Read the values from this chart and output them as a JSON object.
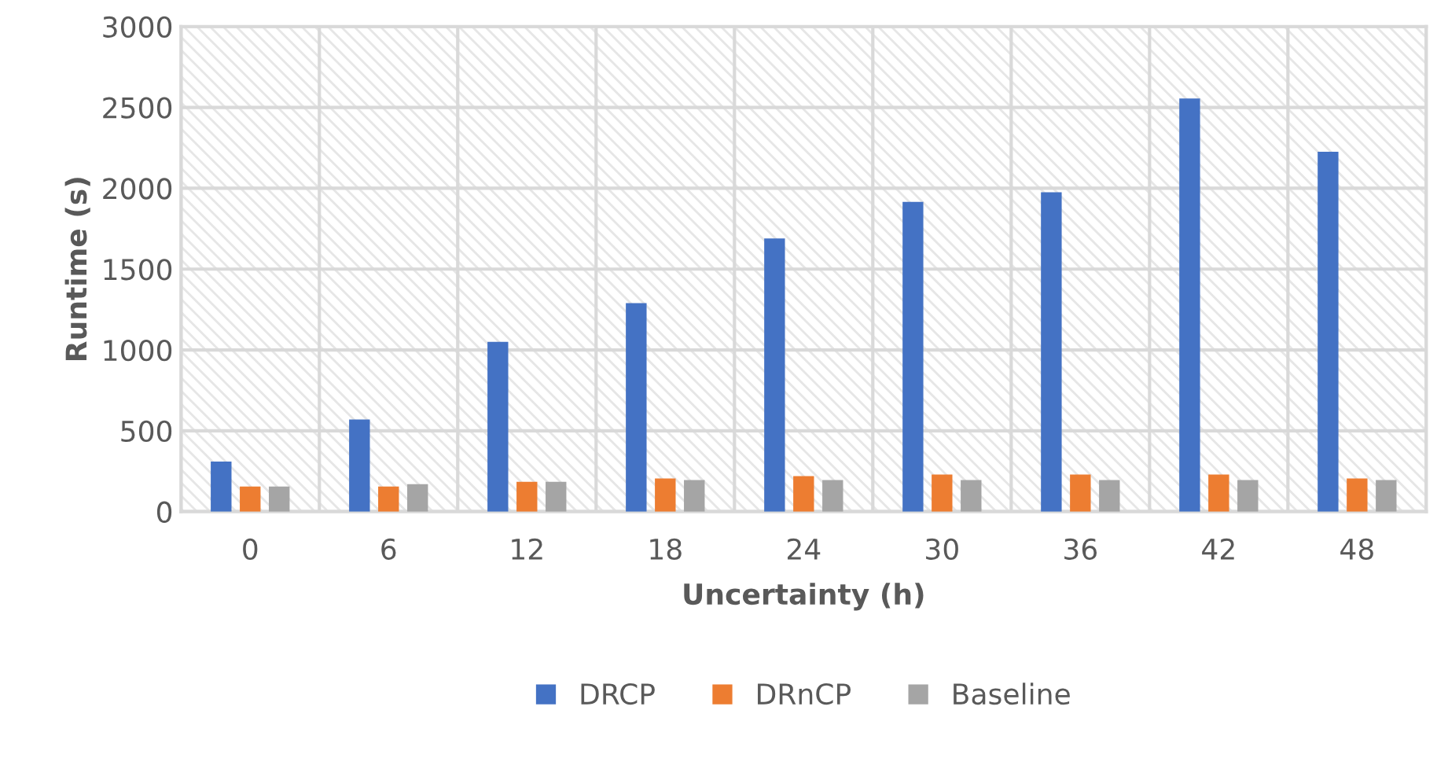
{
  "chart_data": {
    "type": "bar",
    "xlabel": "Uncertainty (h)",
    "ylabel": "Runtime (s)",
    "categories": [
      "0",
      "6",
      "12",
      "18",
      "24",
      "30",
      "36",
      "42",
      "48"
    ],
    "series": [
      {
        "name": "DRCP",
        "color": "#4472c4",
        "values": [
          310,
          570,
          1050,
          1290,
          1690,
          1915,
          1975,
          2555,
          2225
        ]
      },
      {
        "name": "DRnCP",
        "color": "#ed7d31",
        "values": [
          155,
          155,
          185,
          205,
          220,
          230,
          230,
          230,
          205
        ]
      },
      {
        "name": "Baseline",
        "color": "#a5a5a5",
        "values": [
          155,
          170,
          185,
          195,
          195,
          195,
          195,
          195,
          195
        ]
      }
    ],
    "ylim": [
      0,
      3000
    ],
    "yticks": [
      0,
      500,
      1000,
      1500,
      2000,
      2500,
      3000
    ],
    "grid": true,
    "legend": "bottom"
  }
}
